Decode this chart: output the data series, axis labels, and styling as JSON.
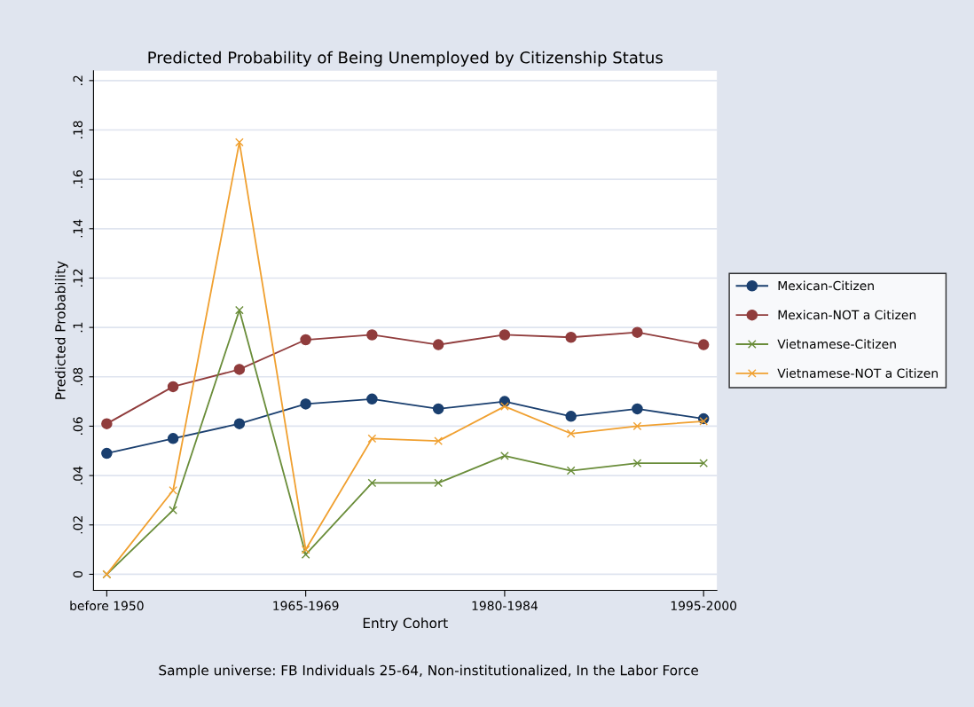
{
  "chart_data": {
    "type": "line",
    "title": "Predicted Probability of Being Unemployed by Citizenship Status",
    "xlabel": "Entry Cohort",
    "ylabel": "Predicted Probability",
    "categories": [
      "before 1950",
      null,
      null,
      "1965-1969",
      null,
      null,
      "1980-1984",
      null,
      null,
      "1995-2000"
    ],
    "series": [
      {
        "name": "Mexican-Citizen",
        "color": "#1a3f6f",
        "marker": "circle",
        "values": [
          0.049,
          0.055,
          0.061,
          0.069,
          0.071,
          0.067,
          0.07,
          0.064,
          0.067,
          0.063
        ]
      },
      {
        "name": "Mexican-NOT a Citizen",
        "color": "#903c3c",
        "marker": "circle",
        "values": [
          0.061,
          0.076,
          0.083,
          0.095,
          0.097,
          0.093,
          0.097,
          0.096,
          0.098,
          0.093
        ]
      },
      {
        "name": "Vietnamese-Citizen",
        "color": "#6a8d3a",
        "marker": "cross",
        "values": [
          0.0,
          0.026,
          0.107,
          0.008,
          0.037,
          0.037,
          0.048,
          0.042,
          0.045,
          0.045
        ]
      },
      {
        "name": "Vietnamese-NOT a Citizen",
        "color": "#f0a030",
        "marker": "cross",
        "values": [
          0.0,
          0.034,
          0.175,
          0.01,
          0.055,
          0.054,
          0.068,
          0.057,
          0.06,
          0.062
        ]
      }
    ],
    "ylim": [
      -0.0065,
      0.204
    ],
    "yticks": [
      0,
      {
        "value": 0.02,
        "label": ".02"
      },
      {
        "value": 0.04,
        "label": ".04"
      },
      {
        "value": 0.06,
        "label": ".06"
      },
      {
        "value": 0.08,
        "label": ".08"
      },
      {
        "value": 0.1,
        "label": ".1"
      },
      {
        "value": 0.12,
        "label": ".12"
      },
      {
        "value": 0.14,
        "label": ".14"
      },
      {
        "value": 0.16,
        "label": ".16"
      },
      {
        "value": 0.18,
        "label": ".18"
      },
      {
        "value": 0.2,
        "label": ".2"
      }
    ],
    "grid": "y",
    "legend": "right",
    "annotations": [
      "Sample universe: FB Individuals 25-64, Non-institutionalized, In the Labor Force"
    ]
  }
}
